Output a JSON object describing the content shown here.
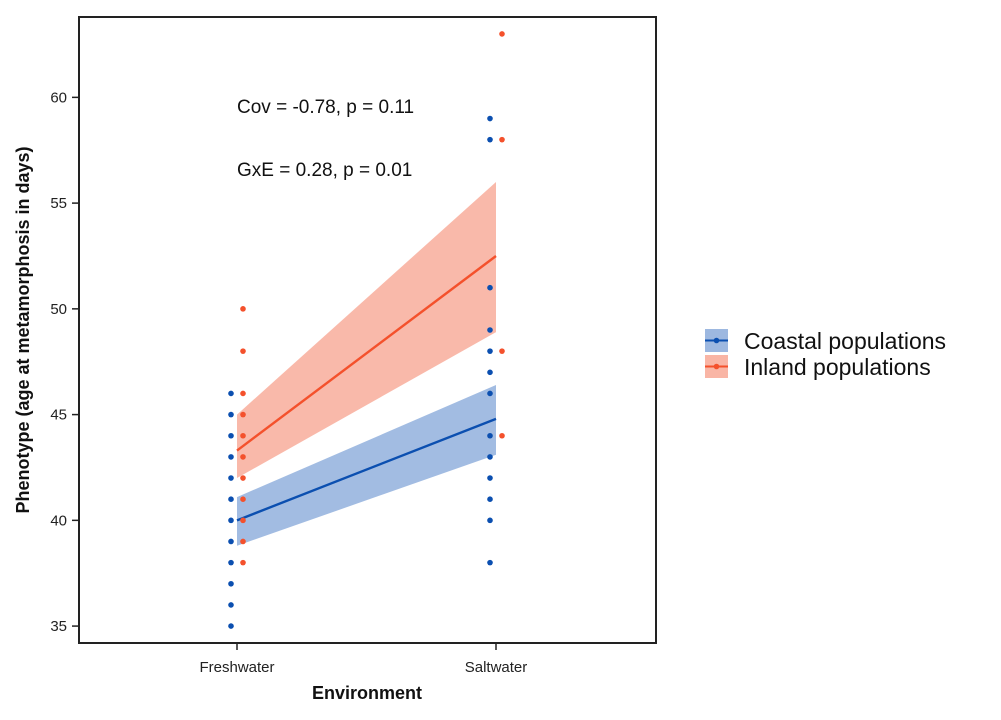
{
  "chart_data": {
    "type": "line",
    "xlabel": "Environment",
    "ylabel": "Phenotype (age at metamorphosis in days)",
    "categories": [
      "Freshwater",
      "Saltwater"
    ],
    "ylim": [
      34.2,
      63.8
    ],
    "yticks": [
      35,
      40,
      45,
      50,
      55,
      60
    ],
    "grid": false,
    "legend_position": "right",
    "annotations": [
      "Cov = -0.78, p = 0.11",
      "GxE = 0.28, p = 0.01"
    ],
    "series": [
      {
        "name": "Coastal populations",
        "color": "#0b4fb0",
        "band_color": "#9db8e0",
        "line": [
          40.0,
          44.8
        ],
        "ci_lower": [
          38.8,
          43.1
        ],
        "ci_upper": [
          41.1,
          46.4
        ],
        "points": {
          "Freshwater": [
            35,
            36,
            37,
            38,
            39,
            40,
            41,
            42,
            43,
            44,
            45,
            46
          ],
          "Saltwater": [
            38,
            40,
            41,
            42,
            43,
            44,
            46,
            47,
            48,
            49,
            51,
            58,
            59
          ]
        }
      },
      {
        "name": "Inland populations",
        "color": "#f4512c",
        "band_color": "#f9b5a5",
        "line": [
          43.3,
          52.5
        ],
        "ci_lower": [
          42.0,
          48.9
        ],
        "ci_upper": [
          45.0,
          56.0
        ],
        "points": {
          "Freshwater": [
            38,
            39,
            40,
            41,
            42,
            43,
            44,
            45,
            46,
            48,
            50
          ],
          "Saltwater": [
            44,
            48,
            58,
            63
          ]
        }
      }
    ]
  }
}
